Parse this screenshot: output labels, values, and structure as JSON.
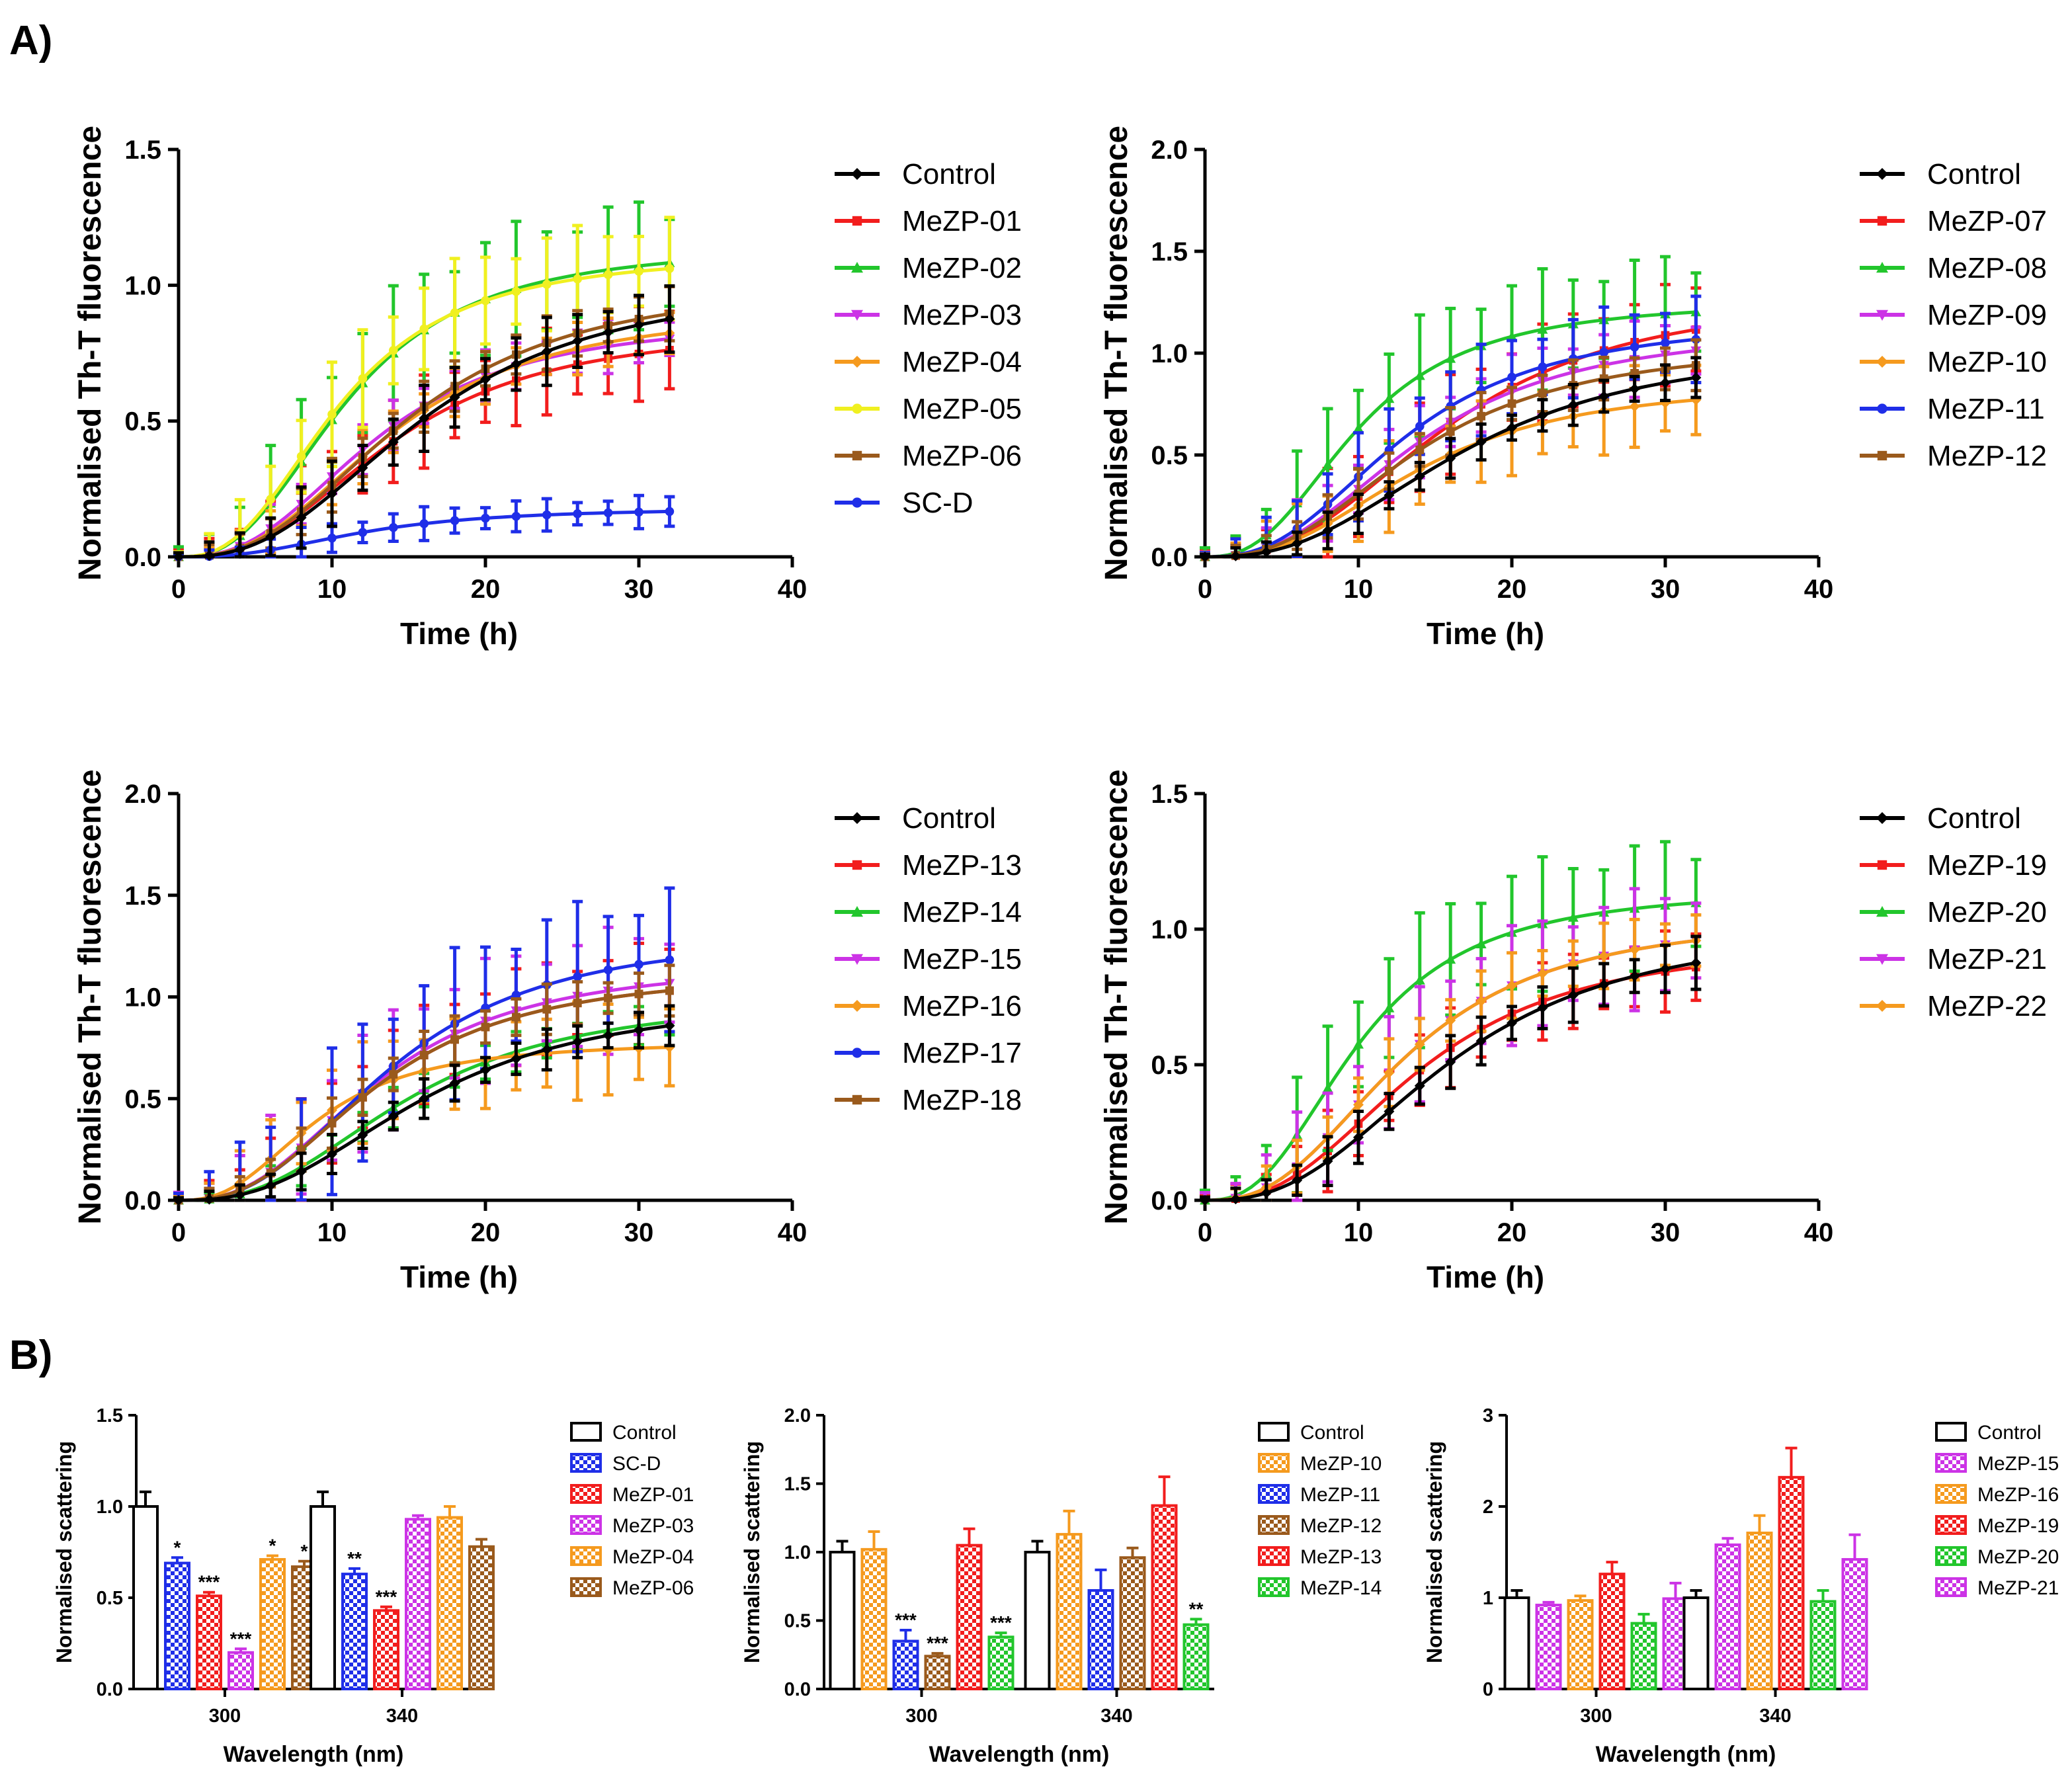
{
  "panel_labels": {
    "a": "A)",
    "b": "B)"
  },
  "colors": {
    "Control": "#000000",
    "SC-D": "#1f2ee8",
    "MeZP-01": "#f21d1d",
    "MeZP-02": "#22c62c",
    "MeZP-03": "#cc33e6",
    "MeZP-04": "#f59a1e",
    "MeZP-05": "#f0f020",
    "MeZP-06": "#9a5a1c",
    "MeZP-07": "#f21d1d",
    "MeZP-08": "#22c62c",
    "MeZP-09": "#cc33e6",
    "MeZP-10": "#f59a1e",
    "MeZP-11": "#1f2ee8",
    "MeZP-12": "#9a5a1c",
    "MeZP-13": "#f21d1d",
    "MeZP-14": "#22c62c",
    "MeZP-15": "#cc33e6",
    "MeZP-16": "#f59a1e",
    "MeZP-17": "#1f2ee8",
    "MeZP-18": "#9a5a1c",
    "MeZP-19": "#f21d1d",
    "MeZP-20": "#22c62c",
    "MeZP-21": "#cc33e6",
    "MeZP-22": "#f59a1e"
  },
  "chart_data": [
    {
      "id": "A1",
      "type": "line",
      "xlabel": "Time (h)",
      "ylabel": "Normalised Th-T fluorescence",
      "xlim": [
        0,
        40
      ],
      "ylim": [
        0,
        1.5
      ],
      "xticks": [
        "0",
        "10",
        "20",
        "30",
        "40"
      ],
      "yticks": [
        "0.0",
        "0.5",
        "1.0",
        "1.5"
      ],
      "x": [
        0,
        2,
        4,
        6,
        8,
        10,
        12,
        14,
        16,
        18,
        20,
        22,
        24,
        26,
        28,
        30,
        32
      ],
      "series": [
        {
          "name": "Control",
          "plateau": 1.02,
          "half": 16,
          "error": 0.1
        },
        {
          "name": "MeZP-01",
          "plateau": 0.85,
          "half": 14,
          "error": 0.14
        },
        {
          "name": "MeZP-02",
          "plateau": 1.15,
          "half": 11,
          "error": 0.2
        },
        {
          "name": "MeZP-03",
          "plateau": 0.88,
          "half": 13,
          "error": 0.08
        },
        {
          "name": "MeZP-04",
          "plateau": 0.92,
          "half": 14,
          "error": 0.08
        },
        {
          "name": "MeZP-05",
          "plateau": 1.12,
          "half": 10.5,
          "error": 0.16
        },
        {
          "name": "MeZP-06",
          "plateau": 1.02,
          "half": 15,
          "error": 0.08
        },
        {
          "name": "SC-D",
          "plateau": 0.18,
          "half": 12,
          "error": 0.05
        }
      ]
    },
    {
      "id": "A2",
      "type": "line",
      "xlabel": "Time (h)",
      "ylabel": "Normalised Th-T fluorescence",
      "xlim": [
        0,
        40
      ],
      "ylim": [
        0,
        2.0
      ],
      "xticks": [
        "0",
        "10",
        "20",
        "30",
        "40"
      ],
      "yticks": [
        "0.0",
        "0.5",
        "1.0",
        "1.5",
        "2.0"
      ],
      "x": [
        0,
        2,
        4,
        6,
        8,
        10,
        12,
        14,
        16,
        18,
        20,
        22,
        24,
        26,
        28,
        30,
        32
      ],
      "series": [
        {
          "name": "Control",
          "plateau": 1.05,
          "half": 17,
          "error": 0.08
        },
        {
          "name": "MeZP-07",
          "plateau": 1.3,
          "half": 16,
          "error": 0.2
        },
        {
          "name": "MeZP-08",
          "plateau": 1.26,
          "half": 10,
          "error": 0.24
        },
        {
          "name": "MeZP-09",
          "plateau": 1.13,
          "half": 14,
          "error": 0.15
        },
        {
          "name": "MeZP-10",
          "plateau": 0.86,
          "half": 14,
          "error": 0.18
        },
        {
          "name": "MeZP-11",
          "plateau": 1.17,
          "half": 13,
          "error": 0.18
        },
        {
          "name": "MeZP-12",
          "plateau": 1.05,
          "half": 14,
          "error": 0.1
        }
      ]
    },
    {
      "id": "A3",
      "type": "line",
      "xlabel": "Time (h)",
      "ylabel": "Normalised Th-T fluorescence",
      "xlim": [
        0,
        40
      ],
      "ylim": [
        0,
        2.0
      ],
      "xticks": [
        "0",
        "10",
        "20",
        "30",
        "40"
      ],
      "yticks": [
        "0.0",
        "0.5",
        "1.0",
        "1.5",
        "2.0"
      ],
      "x": [
        0,
        2,
        4,
        6,
        8,
        10,
        12,
        14,
        16,
        18,
        20,
        22,
        24,
        26,
        28,
        30,
        32
      ],
      "series": [
        {
          "name": "Control",
          "plateau": 1.0,
          "half": 16,
          "error": 0.08
        },
        {
          "name": "MeZP-13",
          "plateau": 1.13,
          "half": 13,
          "error": 0.2
        },
        {
          "name": "MeZP-14",
          "plateau": 1.0,
          "half": 15,
          "error": 0.08
        },
        {
          "name": "MeZP-15",
          "plateau": 1.17,
          "half": 13,
          "error": 0.25
        },
        {
          "name": "MeZP-16",
          "plateau": 0.78,
          "half": 9,
          "error": 0.2
        },
        {
          "name": "MeZP-17",
          "plateau": 1.32,
          "half": 14,
          "error": 0.3
        },
        {
          "name": "MeZP-18",
          "plateau": 1.13,
          "half": 13,
          "error": 0.1
        }
      ]
    },
    {
      "id": "A4",
      "type": "line",
      "xlabel": "Time (h)",
      "ylabel": "Normalised Th-T fluorescence",
      "xlim": [
        0,
        40
      ],
      "ylim": [
        0,
        1.5
      ],
      "xticks": [
        "0",
        "10",
        "20",
        "30",
        "40"
      ],
      "yticks": [
        "0.0",
        "0.5",
        "1.0",
        "1.5"
      ],
      "x": [
        0,
        2,
        4,
        6,
        8,
        10,
        12,
        14,
        16,
        18,
        20,
        22,
        24,
        26,
        28,
        30,
        32
      ],
      "series": [
        {
          "name": "Control",
          "plateau": 1.02,
          "half": 16,
          "error": 0.08
        },
        {
          "name": "MeZP-19",
          "plateau": 0.96,
          "half": 14,
          "error": 0.12
        },
        {
          "name": "MeZP-20",
          "plateau": 1.15,
          "half": 10,
          "error": 0.2
        },
        {
          "name": "MeZP-21",
          "plateau": 1.05,
          "half": 13,
          "error": 0.18
        },
        {
          "name": "MeZP-22",
          "plateau": 1.05,
          "half": 13,
          "error": 0.1
        }
      ]
    },
    {
      "id": "B1",
      "type": "bar",
      "xlabel": "Wavelength (nm)",
      "ylabel": "Normalised scattering",
      "ylim": [
        0,
        1.5
      ],
      "yticks": [
        "0.0",
        "0.5",
        "1.0",
        "1.5"
      ],
      "categories": [
        "300",
        "340"
      ],
      "series": [
        {
          "name": "Control",
          "values": [
            1.0,
            1.0
          ],
          "errors": [
            0.08,
            0.08
          ],
          "sig": [
            "",
            ""
          ]
        },
        {
          "name": "SC-D",
          "values": [
            0.69,
            0.63
          ],
          "errors": [
            0.03,
            0.03
          ],
          "sig": [
            "*",
            "**"
          ]
        },
        {
          "name": "MeZP-01",
          "values": [
            0.51,
            0.43
          ],
          "errors": [
            0.02,
            0.02
          ],
          "sig": [
            "***",
            "***"
          ]
        },
        {
          "name": "MeZP-03",
          "values": [
            0.2,
            0.93
          ],
          "errors": [
            0.02,
            0.02
          ],
          "sig": [
            "***",
            ""
          ]
        },
        {
          "name": "MeZP-04",
          "values": [
            0.71,
            0.94
          ],
          "errors": [
            0.02,
            0.06
          ],
          "sig": [
            "*",
            ""
          ]
        },
        {
          "name": "MeZP-06",
          "values": [
            0.67,
            0.78
          ],
          "errors": [
            0.03,
            0.04
          ],
          "sig": [
            "*",
            ""
          ]
        }
      ]
    },
    {
      "id": "B2",
      "type": "bar",
      "xlabel": "Wavelength (nm)",
      "ylabel": "Normalised scattering",
      "ylim": [
        0,
        2.0
      ],
      "yticks": [
        "0.0",
        "0.5",
        "1.0",
        "1.5",
        "2.0"
      ],
      "categories": [
        "300",
        "340"
      ],
      "series": [
        {
          "name": "Control",
          "values": [
            1.0,
            1.0
          ],
          "errors": [
            0.08,
            0.08
          ],
          "sig": [
            "",
            ""
          ]
        },
        {
          "name": "MeZP-10",
          "values": [
            1.02,
            1.13
          ],
          "errors": [
            0.13,
            0.17
          ],
          "sig": [
            "",
            ""
          ]
        },
        {
          "name": "MeZP-11",
          "values": [
            0.35,
            0.72
          ],
          "errors": [
            0.08,
            0.15
          ],
          "sig": [
            "***",
            ""
          ]
        },
        {
          "name": "MeZP-12",
          "values": [
            0.24,
            0.96
          ],
          "errors": [
            0.02,
            0.07
          ],
          "sig": [
            "***",
            ""
          ]
        },
        {
          "name": "MeZP-13",
          "values": [
            1.05,
            1.34
          ],
          "errors": [
            0.12,
            0.21
          ],
          "sig": [
            "",
            ""
          ]
        },
        {
          "name": "MeZP-14",
          "values": [
            0.38,
            0.47
          ],
          "errors": [
            0.03,
            0.04
          ],
          "sig": [
            "***",
            "**"
          ]
        }
      ]
    },
    {
      "id": "B3",
      "type": "bar",
      "xlabel": "Wavelength (nm)",
      "ylabel": "Normalised scattering",
      "ylim": [
        0,
        3
      ],
      "yticks": [
        "0",
        "1",
        "2",
        "3"
      ],
      "categories": [
        "300",
        "340"
      ],
      "series": [
        {
          "name": "Control",
          "values": [
            1.0,
            1.0
          ],
          "errors": [
            0.08,
            0.08
          ],
          "sig": [
            "",
            ""
          ]
        },
        {
          "name": "MeZP-15",
          "values": [
            0.92,
            1.58
          ],
          "errors": [
            0.03,
            0.07
          ],
          "sig": [
            "",
            ""
          ]
        },
        {
          "name": "MeZP-16",
          "values": [
            0.97,
            1.71
          ],
          "errors": [
            0.05,
            0.19
          ],
          "sig": [
            "",
            ""
          ]
        },
        {
          "name": "MeZP-19",
          "values": [
            1.26,
            2.32
          ],
          "errors": [
            0.13,
            0.32
          ],
          "sig": [
            "",
            ""
          ]
        },
        {
          "name": "MeZP-20",
          "values": [
            0.72,
            0.96
          ],
          "errors": [
            0.1,
            0.12
          ],
          "sig": [
            "",
            ""
          ]
        },
        {
          "name": "MeZP-21",
          "values": [
            0.99,
            1.42
          ],
          "errors": [
            0.17,
            0.27
          ],
          "sig": [
            "",
            ""
          ]
        }
      ]
    }
  ]
}
